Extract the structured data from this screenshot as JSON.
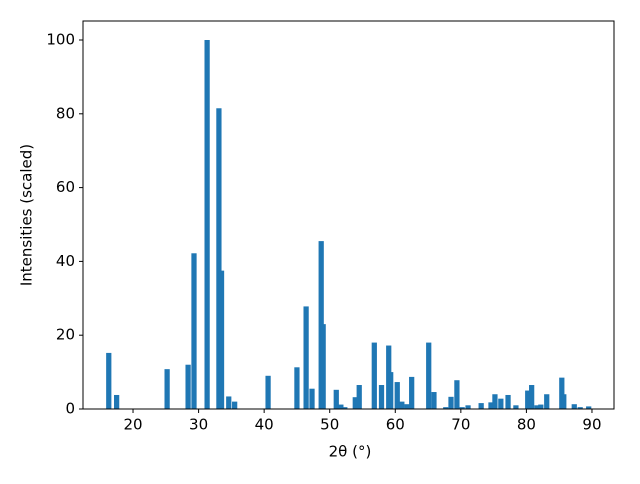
{
  "chart_data": {
    "type": "bar",
    "xlabel": "2θ (°)",
    "ylabel": "Intensities (scaled)",
    "x": [
      16.3,
      17.5,
      25.2,
      28.4,
      29.3,
      31.3,
      33.1,
      33.5,
      34.6,
      35.5,
      40.6,
      45.0,
      46.4,
      47.3,
      48.7,
      49.0,
      51.0,
      51.7,
      52.3,
      53.9,
      54.5,
      56.8,
      57.9,
      59.0,
      59.3,
      60.3,
      61.0,
      61.8,
      62.5,
      65.1,
      65.9,
      67.7,
      68.5,
      69.4,
      70.2,
      71.1,
      73.1,
      74.6,
      75.2,
      76.1,
      77.2,
      78.4,
      80.2,
      80.8,
      81.6,
      82.2,
      83.1,
      85.4,
      85.7,
      87.3,
      88.2,
      89.5
    ],
    "values": [
      15.2,
      3.8,
      10.8,
      12,
      42.2,
      100,
      81.5,
      37.5,
      3.4,
      2,
      9,
      11.3,
      27.8,
      5.5,
      45.5,
      23,
      5.2,
      1.2,
      0.5,
      3.2,
      6.5,
      18,
      6.5,
      17.2,
      10,
      7.3,
      2,
      1.3,
      8.7,
      18,
      4.6,
      0.5,
      3.3,
      7.8,
      0.5,
      1,
      1.6,
      1.8,
      4,
      2.8,
      3.8,
      1,
      5,
      6.5,
      1,
      1.2,
      4,
      8.5,
      4,
      1.3,
      0.5,
      0.7
    ],
    "color": "#1f77b4",
    "xlim": [
      12.37,
      93.36
    ],
    "xticks": [
      20,
      30,
      40,
      50,
      60,
      70,
      80,
      90
    ],
    "ylim": [
      0,
      105.15
    ],
    "yticks": [
      0,
      20,
      40,
      60,
      80,
      100
    ],
    "grid": false
  }
}
